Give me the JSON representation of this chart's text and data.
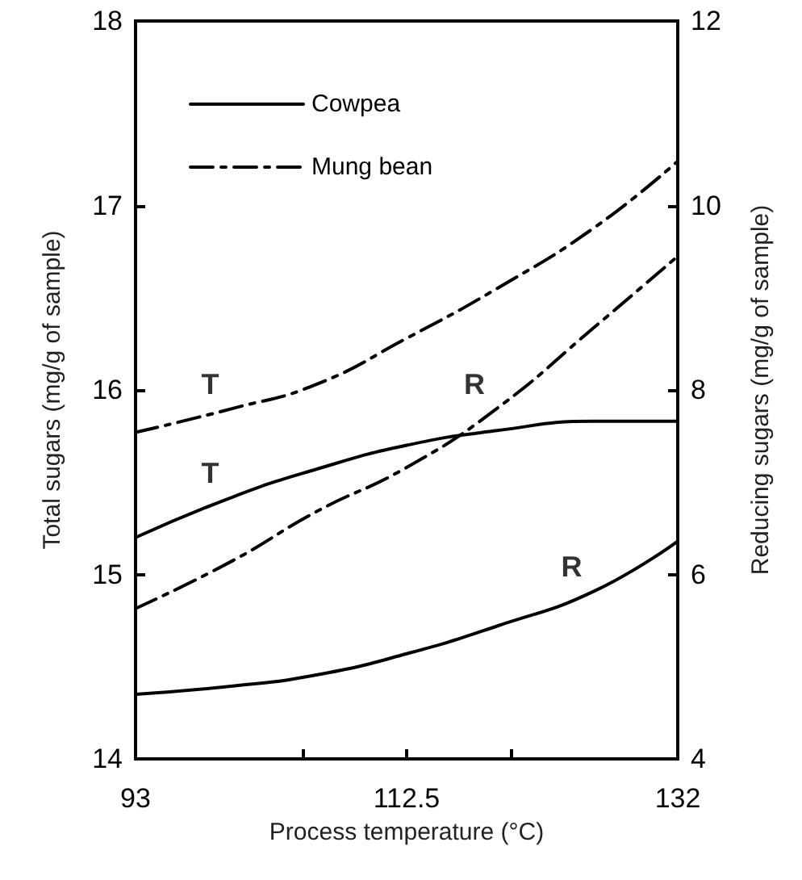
{
  "chart_data": {
    "type": "line",
    "xlabel": "Process temperature (°C)",
    "ylabel": "Total sugars (mg/g of sample)",
    "y2label": "Reducing sugars (mg/g of sample)",
    "x": [
      93,
      100,
      106,
      112.5,
      119,
      126,
      132
    ],
    "series": [
      {
        "name": "Cowpea",
        "color": "#000000",
        "line_style": "solid",
        "values": [
          15.2,
          15.42,
          15.57,
          15.7,
          15.78,
          15.83,
          15.83
        ]
      },
      {
        "name": "Mung bean",
        "color": "#000000",
        "line_style": "dashed",
        "values": [
          15.77,
          15.9,
          16.03,
          16.28,
          16.55,
          16.88,
          17.24
        ]
      },
      {
        "color": "#000000",
        "line_style": "solid",
        "axis": "y2",
        "values": [
          4.7,
          4.79,
          4.91,
          5.14,
          5.44,
          5.82,
          6.36
        ]
      },
      {
        "color": "#000000",
        "line_style": "dashed",
        "axis": "y2",
        "values": [
          5.63,
          6.15,
          6.68,
          7.16,
          7.8,
          8.68,
          9.45
        ]
      }
    ],
    "annotations": [
      {
        "text": "T",
        "x": 100,
        "y": 15.9
      },
      {
        "text": "T",
        "x": 100,
        "y": 15.42
      },
      {
        "text": "R",
        "x": 119,
        "y": 15.9
      },
      {
        "text": "R",
        "x": 126,
        "y": 14.91
      }
    ],
    "xlim": [
      93,
      132
    ],
    "xticks": [
      93,
      {
        "value": 105,
        "label": null
      },
      112.5,
      {
        "value": 120,
        "label": null
      },
      132
    ],
    "ylim": [
      14,
      18
    ],
    "yticks": [
      14,
      15,
      16,
      17,
      18
    ],
    "y2lim": [
      4,
      12
    ],
    "y2ticks": [
      4,
      6,
      8,
      10,
      12
    ],
    "grid": false,
    "legend": "top left",
    "marker": "none"
  }
}
